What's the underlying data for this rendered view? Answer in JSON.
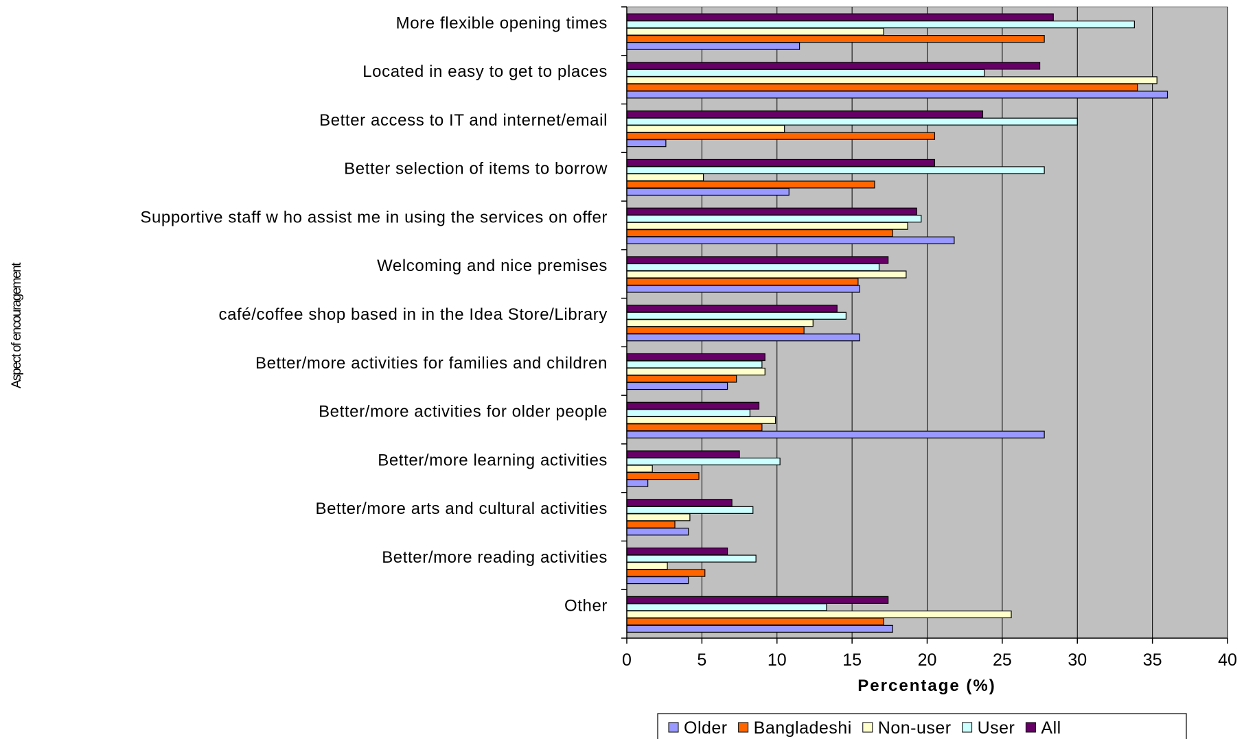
{
  "chart_data": {
    "type": "bar",
    "orientation": "horizontal",
    "title": "",
    "xlabel": "Percentage (%)",
    "ylabel": "Aspect of encouragement",
    "xlim": [
      0,
      40
    ],
    "xticks": [
      0,
      5,
      10,
      15,
      20,
      25,
      30,
      35,
      40
    ],
    "grid": true,
    "legend_position": "bottom",
    "plot_background": "#C0C0C0",
    "categories": [
      "More flexible opening times",
      "Located in easy to get to places",
      "Better access to IT and internet/email",
      "Better selection of items to borrow",
      "Supportive staff w ho assist me in using the services on offer",
      "Welcoming and nice premises",
      "café/coffee shop based in in the Idea Store/Library",
      "Better/more activities for families and children",
      "Better/more activities for older people",
      "Better/more learning activities",
      "Better/more arts and cultural activities",
      "Better/more reading activities",
      "Other"
    ],
    "series": [
      {
        "name": "Older",
        "color": "#9999FF",
        "values": [
          11.5,
          36,
          2.6,
          10.8,
          21.8,
          15.5,
          15.5,
          6.7,
          27.8,
          1.4,
          4.1,
          4.1,
          17.7
        ]
      },
      {
        "name": "Bangladeshi",
        "color": "#FF6600",
        "values": [
          27.8,
          34,
          20.5,
          16.5,
          17.7,
          15.4,
          11.8,
          7.3,
          9,
          4.8,
          3.2,
          5.2,
          17.1
        ]
      },
      {
        "name": "Non-user",
        "color": "#FFFFCC",
        "values": [
          17.1,
          35.3,
          10.5,
          5.1,
          18.7,
          18.6,
          12.4,
          9.2,
          9.9,
          1.7,
          4.2,
          2.7,
          25.6
        ]
      },
      {
        "name": "User",
        "color": "#CCFFFF",
        "values": [
          33.8,
          23.8,
          30,
          27.8,
          19.6,
          16.8,
          14.6,
          9,
          8.2,
          10.2,
          8.4,
          8.6,
          13.3
        ]
      },
      {
        "name": "All",
        "color": "#660066",
        "values": [
          28.4,
          27.5,
          23.7,
          20.5,
          19.3,
          17.4,
          14,
          9.2,
          8.8,
          7.5,
          7,
          6.7,
          17.4
        ]
      }
    ]
  }
}
